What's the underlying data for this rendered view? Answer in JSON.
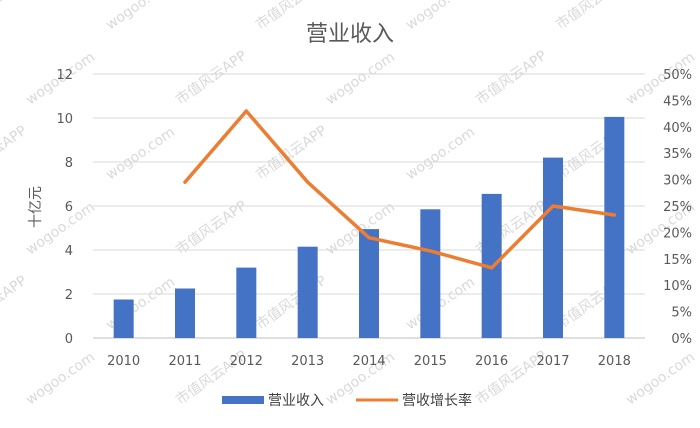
{
  "chart_data": {
    "type": "bar",
    "title": "营业收入",
    "categories": [
      "2010",
      "2011",
      "2012",
      "2013",
      "2014",
      "2015",
      "2016",
      "2017",
      "2018"
    ],
    "ylabel": "十亿元",
    "ylim": [
      0,
      12
    ],
    "yticks": [
      "0",
      "2",
      "4",
      "6",
      "8",
      "10",
      "12"
    ],
    "y2lim": [
      0,
      0.5
    ],
    "y2ticks": [
      "0%",
      "5%",
      "10%",
      "15%",
      "20%",
      "25%",
      "30%",
      "35%",
      "40%",
      "45%",
      "50%"
    ],
    "grid": true,
    "legend": "bottom",
    "series": [
      {
        "name": "营业收入",
        "type": "bar",
        "axis": "left",
        "color": "#4472C4",
        "values": [
          1.75,
          2.25,
          3.2,
          4.15,
          4.95,
          5.85,
          6.55,
          8.2,
          10.05
        ]
      },
      {
        "name": "营收增长率",
        "type": "line",
        "axis": "right",
        "color": "#ED7D31",
        "values": [
          null,
          0.295,
          0.43,
          0.295,
          0.19,
          0.165,
          0.133,
          0.25,
          0.233
        ]
      }
    ]
  }
}
